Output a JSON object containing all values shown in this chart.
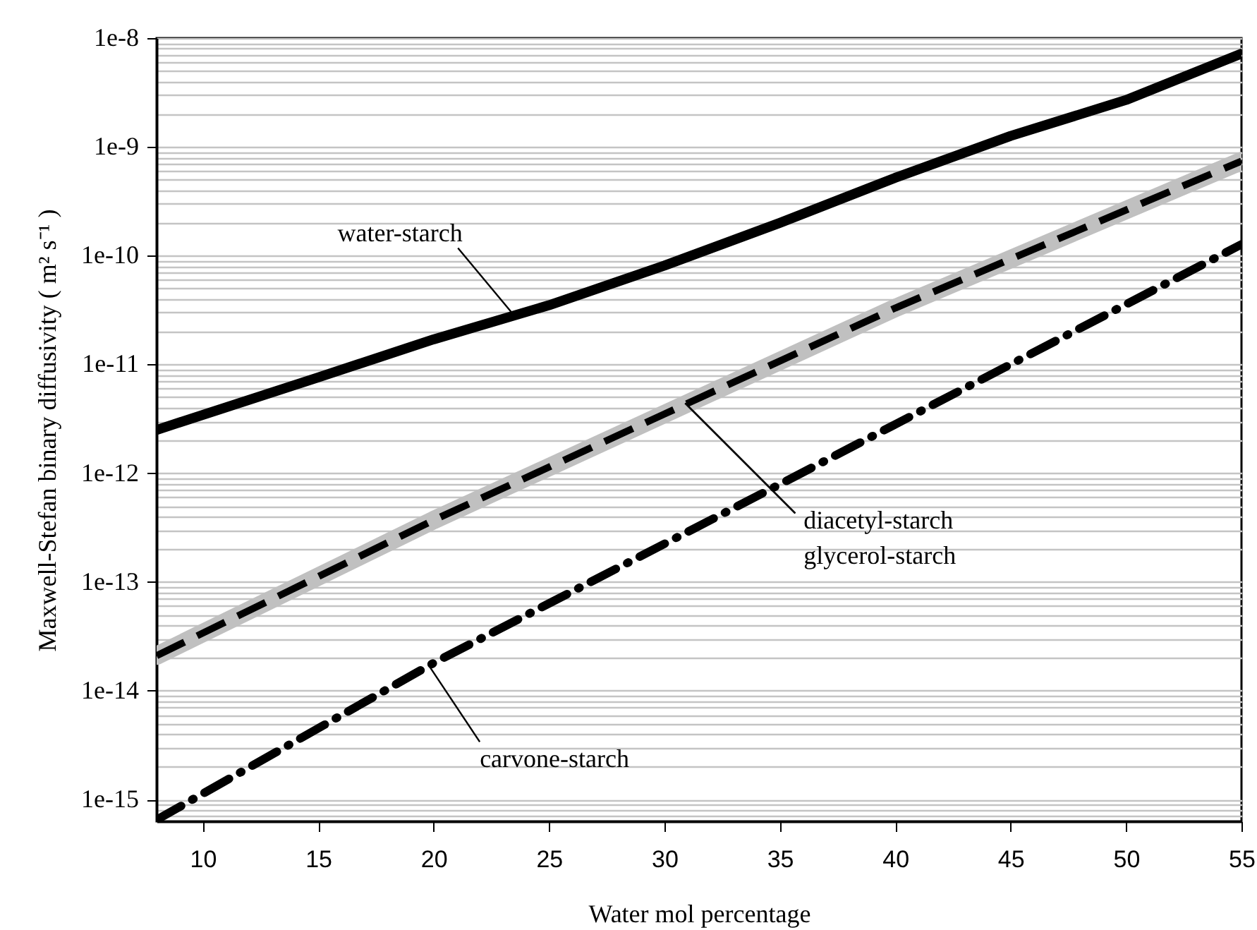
{
  "chart_data": {
    "type": "line",
    "xlabel": "Water mol percentage",
    "ylabel": "Maxwell-Stefan binary diffusivity ( m² s⁻¹ )",
    "log": "y",
    "grid": "y",
    "xlim": [
      8,
      55
    ],
    "xticks": [
      10,
      15,
      20,
      25,
      30,
      35,
      40,
      45,
      50,
      55
    ],
    "ylim": [
      6.3e-16,
      1e-08
    ],
    "yticks": [
      {
        "value": 7e-16,
        "label": null
      },
      {
        "value": 8e-16,
        "label": null
      },
      {
        "value": 9e-16,
        "label": null
      },
      {
        "value": 1e-15,
        "label": "1e-15"
      },
      {
        "value": 2e-15,
        "label": null
      },
      {
        "value": 3e-15,
        "label": null
      },
      {
        "value": 4e-15,
        "label": null
      },
      {
        "value": 5e-15,
        "label": null
      },
      {
        "value": 6e-15,
        "label": null
      },
      {
        "value": 7e-15,
        "label": null
      },
      {
        "value": 8e-15,
        "label": null
      },
      {
        "value": 9e-15,
        "label": null
      },
      {
        "value": 1e-14,
        "label": "1e-14"
      },
      {
        "value": 2e-14,
        "label": null
      },
      {
        "value": 3e-14,
        "label": null
      },
      {
        "value": 4e-14,
        "label": null
      },
      {
        "value": 5e-14,
        "label": null
      },
      {
        "value": 6e-14,
        "label": null
      },
      {
        "value": 7e-14,
        "label": null
      },
      {
        "value": 8e-14,
        "label": null
      },
      {
        "value": 9e-14,
        "label": null
      },
      {
        "value": 1e-13,
        "label": "1e-13"
      },
      {
        "value": 2e-13,
        "label": null
      },
      {
        "value": 3e-13,
        "label": null
      },
      {
        "value": 4e-13,
        "label": null
      },
      {
        "value": 5e-13,
        "label": null
      },
      {
        "value": 6e-13,
        "label": null
      },
      {
        "value": 7e-13,
        "label": null
      },
      {
        "value": 8e-13,
        "label": null
      },
      {
        "value": 9e-13,
        "label": null
      },
      {
        "value": 1e-12,
        "label": "1e-12"
      },
      {
        "value": 2e-12,
        "label": null
      },
      {
        "value": 3e-12,
        "label": null
      },
      {
        "value": 4e-12,
        "label": null
      },
      {
        "value": 5e-12,
        "label": null
      },
      {
        "value": 6e-12,
        "label": null
      },
      {
        "value": 7e-12,
        "label": null
      },
      {
        "value": 8e-12,
        "label": null
      },
      {
        "value": 9e-12,
        "label": null
      },
      {
        "value": 1e-11,
        "label": "1e-11"
      },
      {
        "value": 2e-11,
        "label": null
      },
      {
        "value": 3e-11,
        "label": null
      },
      {
        "value": 4e-11,
        "label": null
      },
      {
        "value": 5e-11,
        "label": null
      },
      {
        "value": 6e-11,
        "label": null
      },
      {
        "value": 7e-11,
        "label": null
      },
      {
        "value": 8e-11,
        "label": null
      },
      {
        "value": 9e-11,
        "label": null
      },
      {
        "value": 1e-10,
        "label": "1e-10"
      },
      {
        "value": 2e-10,
        "label": null
      },
      {
        "value": 3e-10,
        "label": null
      },
      {
        "value": 4e-10,
        "label": null
      },
      {
        "value": 5e-10,
        "label": null
      },
      {
        "value": 6e-10,
        "label": null
      },
      {
        "value": 7e-10,
        "label": null
      },
      {
        "value": 8e-10,
        "label": null
      },
      {
        "value": 9e-10,
        "label": null
      },
      {
        "value": 1e-09,
        "label": "1e-9"
      },
      {
        "value": 2e-09,
        "label": null
      },
      {
        "value": 3e-09,
        "label": null
      },
      {
        "value": 4e-09,
        "label": null
      },
      {
        "value": 5e-09,
        "label": null
      },
      {
        "value": 6e-09,
        "label": null
      },
      {
        "value": 7e-09,
        "label": null
      },
      {
        "value": 8e-09,
        "label": null
      },
      {
        "value": 9e-09,
        "label": null
      },
      {
        "value": 1e-08,
        "label": "1e-8"
      }
    ],
    "series": [
      {
        "color": "#000000",
        "line_style": "solid",
        "x": [
          8,
          15,
          20,
          25,
          30,
          35,
          40,
          45,
          50,
          55
        ],
        "values": [
          2.5e-12,
          7.6e-12,
          1.7e-11,
          3.5e-11,
          8.1e-11,
          2e-10,
          5.2e-10,
          1.26e-09,
          2.7e-09,
          7.2e-09
        ]
      },
      {
        "color": "#c0c0c0",
        "line_style": "solid",
        "x": [
          8,
          20,
          30,
          40,
          55
        ],
        "values": [
          2.1e-14,
          3.7e-13,
          3.5e-12,
          3.3e-11,
          7.4e-10
        ]
      },
      {
        "color": "#000000",
        "line_style": "dashed",
        "x": [
          8,
          20,
          30,
          40,
          55
        ],
        "values": [
          2.1e-14,
          3.7e-13,
          3.5e-12,
          3.3e-11,
          7.4e-10
        ]
      },
      {
        "color": "#000000",
        "line_style": "dashdot",
        "x": [
          8,
          20,
          35,
          55
        ],
        "values": [
          6.5e-16,
          1.8e-14,
          7.9e-13,
          1.27e-10
        ]
      }
    ],
    "annotations": [
      {
        "text": "water-starch",
        "x": 23.5,
        "y": 2.8e-11
      },
      {
        "text": "diacetyl-starch",
        "x": 30.9,
        "y": 4.4e-12
      },
      {
        "text": "glycerol-starch",
        "x": 30.9,
        "y": 4.4e-12
      },
      {
        "text": "carvone-starch",
        "x": 19.8,
        "y": 1.7e-14
      }
    ]
  }
}
